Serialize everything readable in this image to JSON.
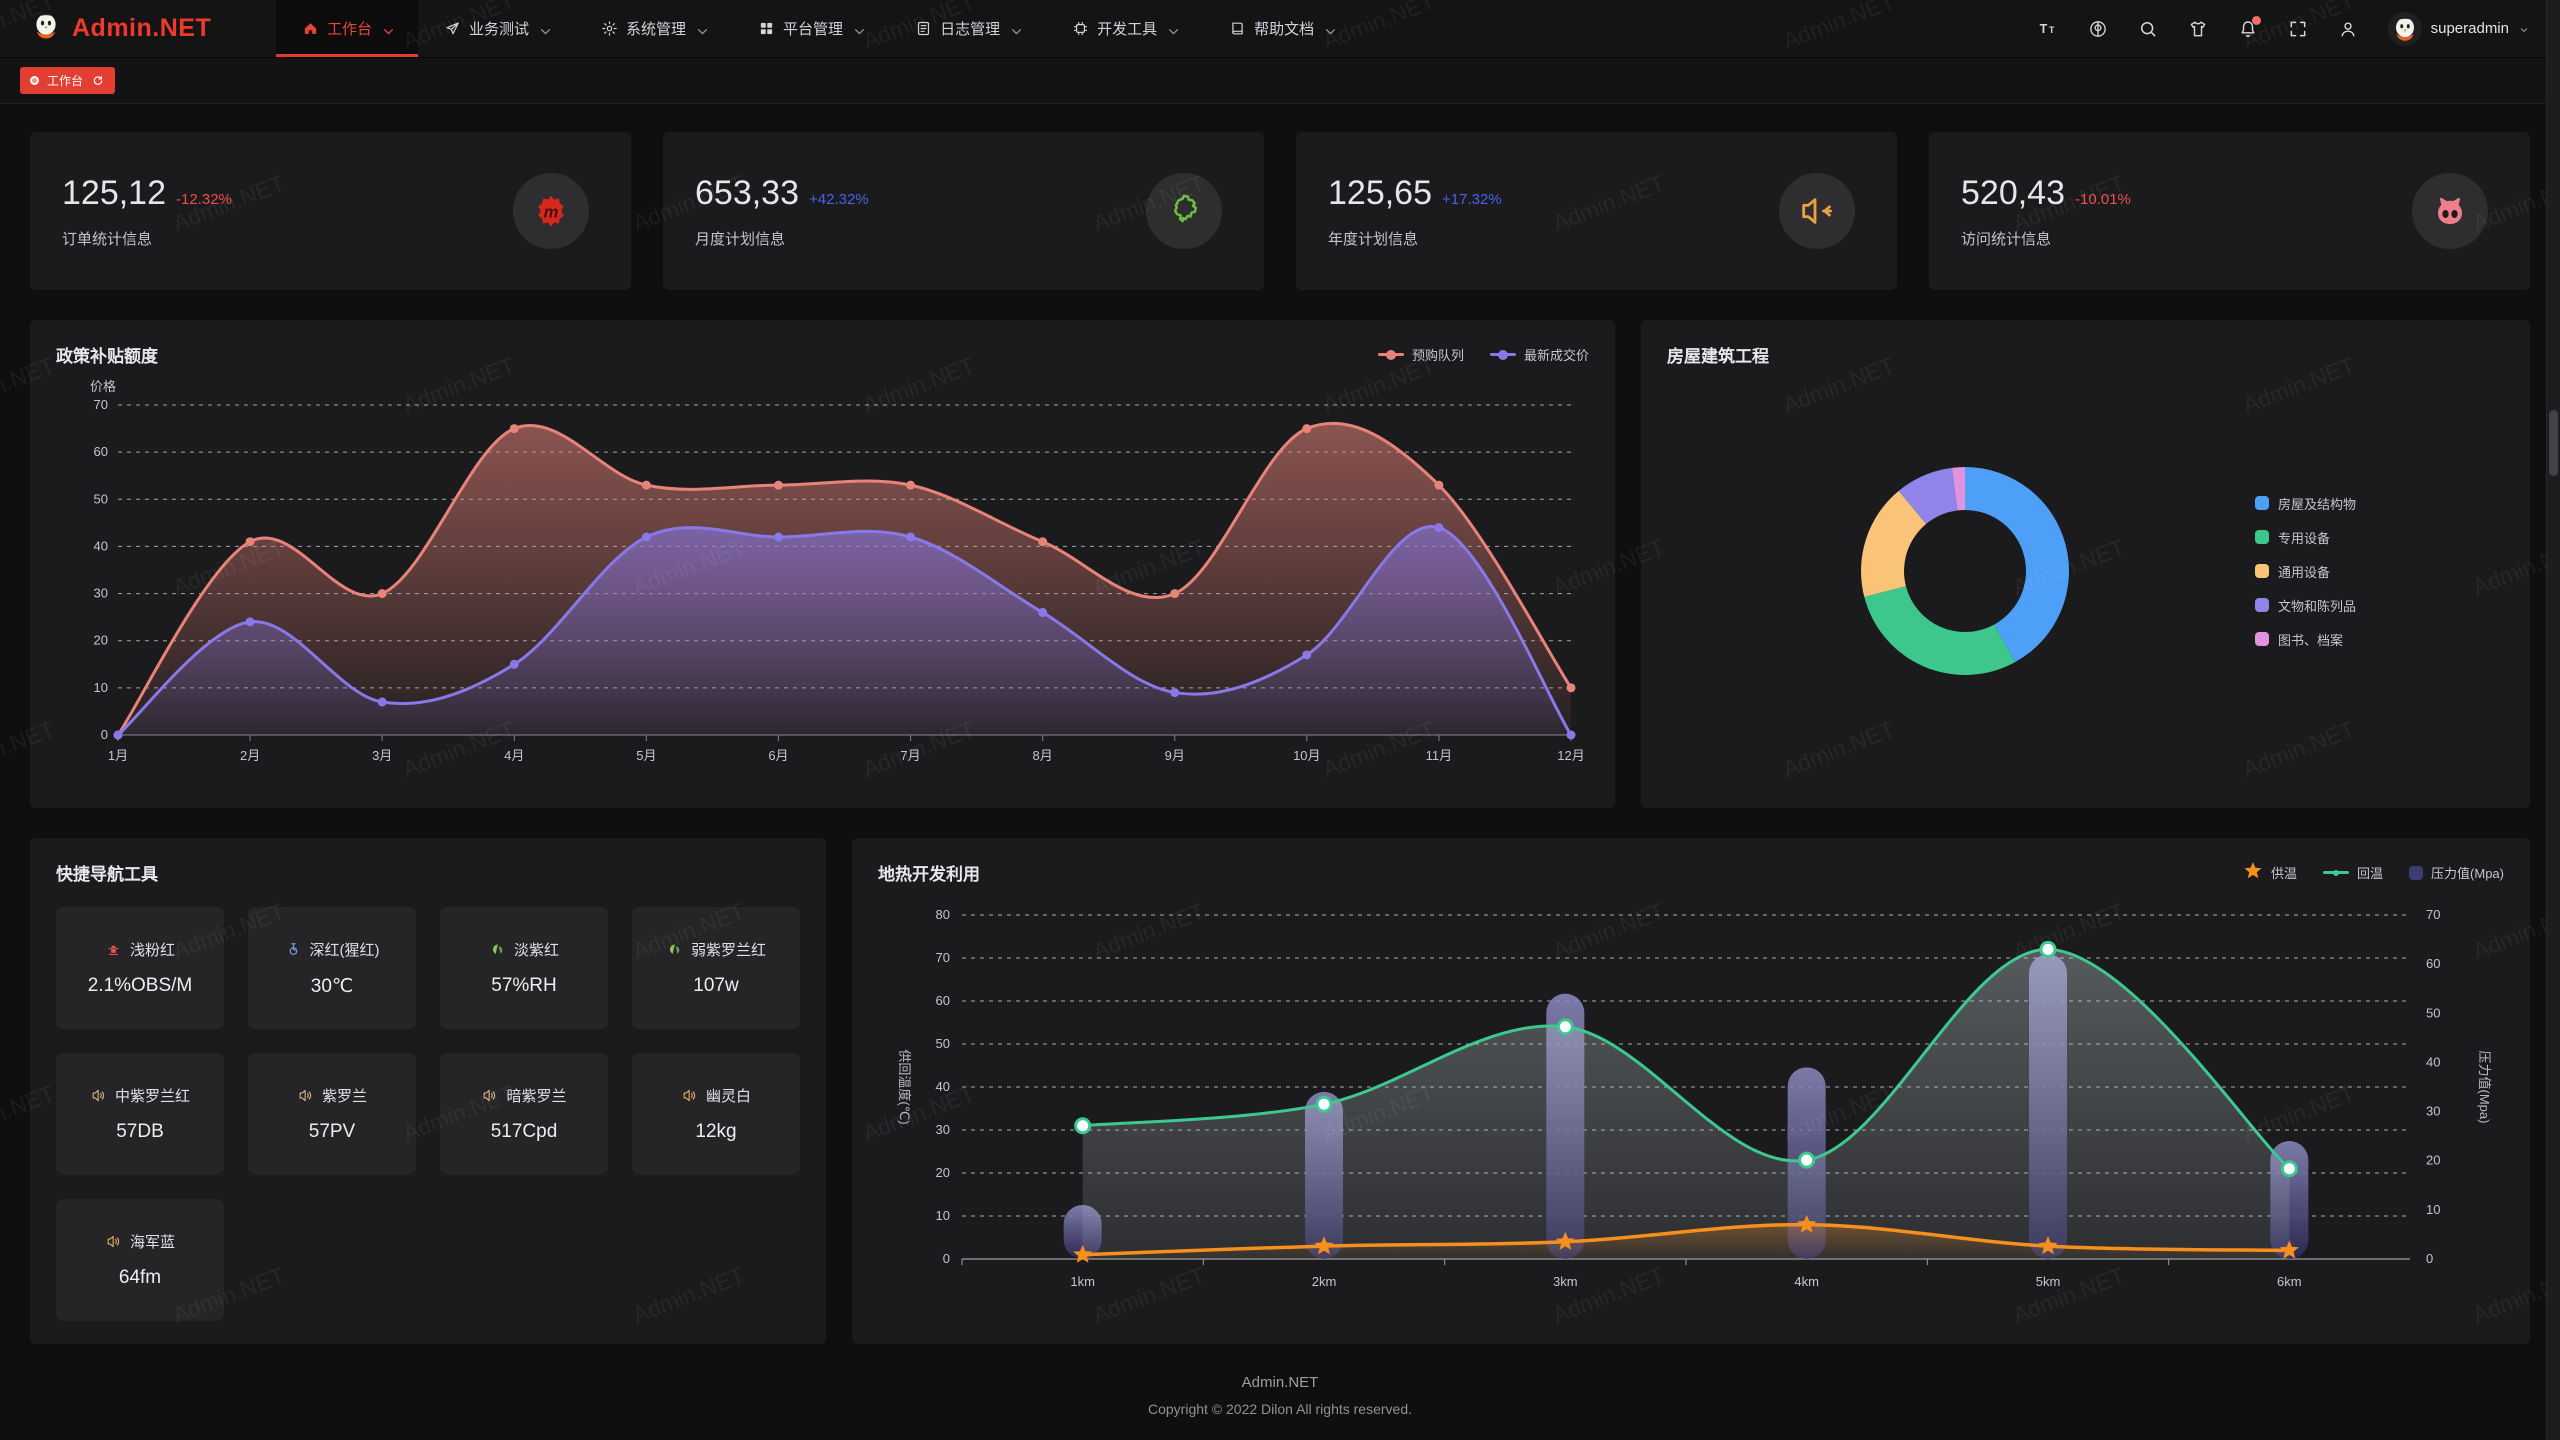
{
  "navbar": {
    "logo_text": "Admin.NET",
    "menus": [
      {
        "label": "工作台",
        "icon": "home-icon",
        "active": true
      },
      {
        "label": "业务测试",
        "icon": "send-icon",
        "active": false
      },
      {
        "label": "系统管理",
        "icon": "gear-icon",
        "active": false
      },
      {
        "label": "平台管理",
        "icon": "grid-icon",
        "active": false
      },
      {
        "label": "日志管理",
        "icon": "document-icon",
        "active": false
      },
      {
        "label": "开发工具",
        "icon": "chip-icon",
        "active": false
      },
      {
        "label": "帮助文档",
        "icon": "book-icon",
        "active": false
      }
    ],
    "actions": [
      "font-size-icon",
      "language-icon",
      "search-icon",
      "theme-icon",
      "notification-icon",
      "fullscreen-icon",
      "profile-icon"
    ],
    "notification_badge": true,
    "username": "superadmin"
  },
  "tagbar": {
    "tags": [
      {
        "label": "工作台",
        "active": true
      }
    ]
  },
  "stats": [
    {
      "value": "125,12",
      "delta": "-12.32%",
      "trend": "down",
      "label": "订单统计信息",
      "icon": "meetup-icon",
      "icon_color": "#d8271c"
    },
    {
      "value": "653,33",
      "delta": "+42.32%",
      "trend": "up",
      "label": "月度计划信息",
      "icon": "china-map-icon",
      "icon_color": "#6fbf3a"
    },
    {
      "value": "125,65",
      "delta": "+17.32%",
      "trend": "up",
      "label": "年度计划信息",
      "icon": "speaker-out-icon",
      "icon_color": "#e8a23f"
    },
    {
      "value": "520,43",
      "delta": "-10.01%",
      "trend": "down",
      "label": "访问统计信息",
      "icon": "cat-icon",
      "icon_color": "#ee7e89"
    }
  ],
  "quick_nav": {
    "title": "快捷导航工具",
    "items": [
      {
        "name": "浅粉红",
        "value": "2.1%OBS/M",
        "icon": "hydrant-icon",
        "color": "#e05252"
      },
      {
        "name": "深红(猩红)",
        "value": "30℃",
        "icon": "thermometer-icon",
        "color": "#7d9fe8"
      },
      {
        "name": "淡紫红",
        "value": "57%RH",
        "icon": "leaf-icon",
        "color": "#8fcc62"
      },
      {
        "name": "弱紫罗兰红",
        "value": "107w",
        "icon": "leaf-icon",
        "color": "#8fcc62"
      },
      {
        "name": "中紫罗兰红",
        "value": "57DB",
        "icon": "speaker-icon",
        "color": "#d9b286"
      },
      {
        "name": "紫罗兰",
        "value": "57PV",
        "icon": "speaker-icon",
        "color": "#d9b286"
      },
      {
        "name": "暗紫罗兰",
        "value": "517Cpd",
        "icon": "speaker-icon",
        "color": "#d9b286"
      },
      {
        "name": "幽灵白",
        "value": "12kg",
        "icon": "speaker-icon",
        "color": "#e3aa63"
      },
      {
        "name": "海军蓝",
        "value": "64fm",
        "icon": "speaker-icon",
        "color": "#e3aa63"
      }
    ]
  },
  "footer": {
    "line1": "Admin.NET",
    "line2": "Copyright © 2022 Dilon All rights reserved."
  },
  "watermark": "Admin.NET",
  "chart_data": [
    {
      "type": "area",
      "title": "政策补贴额度",
      "ylabel": "价格",
      "categories": [
        "1月",
        "2月",
        "3月",
        "4月",
        "5月",
        "6月",
        "7月",
        "8月",
        "9月",
        "10月",
        "11月",
        "12月"
      ],
      "ylim": [
        0,
        70
      ],
      "yticks": [
        0,
        10,
        20,
        30,
        40,
        50,
        60,
        70
      ],
      "grid": "dashed",
      "legend_position": "top-right",
      "series": [
        {
          "name": "预购队列",
          "color": "#E8837A",
          "values": [
            0,
            41,
            30,
            65,
            53,
            53,
            53,
            41,
            30,
            65,
            53,
            10
          ]
        },
        {
          "name": "最新成交价",
          "color": "#8878E8",
          "values": [
            0,
            24,
            7,
            15,
            42,
            42,
            42,
            26,
            9,
            17,
            44,
            0
          ]
        }
      ]
    },
    {
      "type": "pie",
      "title": "房屋建筑工程",
      "donut": true,
      "legend_position": "right",
      "labels": [
        "房屋及结构物",
        "专用设备",
        "通用设备",
        "文物和陈列品",
        "图书、档案"
      ],
      "values": [
        42,
        29,
        18,
        9,
        2
      ],
      "unit": "percent",
      "colors": [
        "#4E9FF7",
        "#3EC78D",
        "#F9C478",
        "#8F85E8",
        "#E193DD"
      ]
    },
    {
      "type": "line-bar-dual",
      "title": "地热开发利用",
      "categories": [
        "1km",
        "2km",
        "3km",
        "4km",
        "5km",
        "6km"
      ],
      "left_axis": {
        "name": "供回温度(℃)",
        "min": 0,
        "max": 80,
        "ticks": [
          0,
          10,
          20,
          30,
          40,
          50,
          60,
          70,
          80
        ]
      },
      "right_axis": {
        "name": "压力值(Mpa)",
        "min": 0,
        "max": 70,
        "ticks": [
          0,
          10,
          20,
          30,
          40,
          50,
          60,
          70
        ]
      },
      "grid": "dashed",
      "legend_position": "top-right",
      "series": [
        {
          "name": "供温",
          "chart": "line",
          "marker": "star",
          "axis": "left",
          "color": "#F78F1E",
          "values": [
            1,
            3,
            4,
            8,
            3,
            2
          ]
        },
        {
          "name": "回温",
          "chart": "line",
          "marker": "circle",
          "axis": "left",
          "color": "#3CC98F",
          "area": true,
          "values": [
            31,
            36,
            54,
            23,
            72,
            21
          ]
        },
        {
          "name": "压力值(Mpa)",
          "chart": "bar",
          "axis": "right",
          "color_top": "#8D8BC0",
          "color_bottom": "#2E2B5A",
          "legend_color": "#3e3b6e",
          "values": [
            11,
            34,
            54,
            39,
            62,
            24
          ]
        }
      ]
    }
  ]
}
